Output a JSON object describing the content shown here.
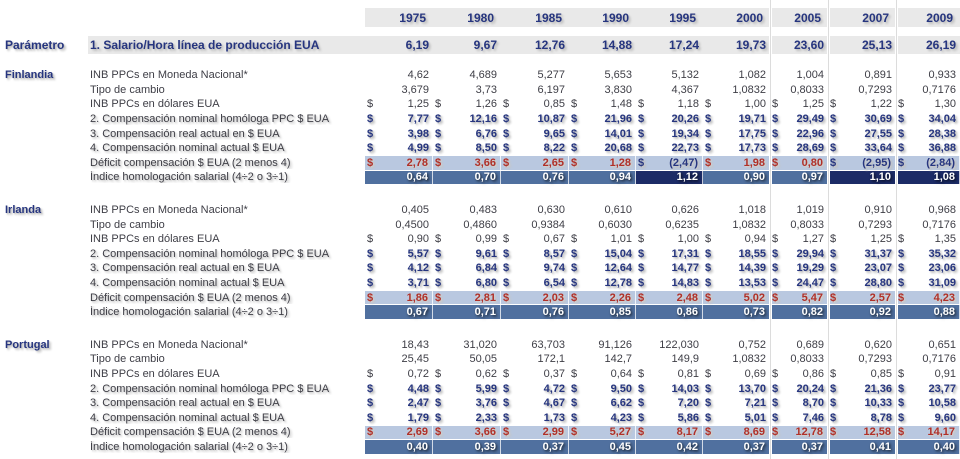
{
  "colors": {
    "navy_text": "#26357f",
    "red_text": "#b03028",
    "plain_text": "#3e3e46",
    "header_band_bg": "#e9e9e9",
    "deficit_row_bg": "#b9c8e0",
    "indice_row_bg_low": "#50709f",
    "indice_row_bg_high": "#1c2b66",
    "divider_line": "#dcdcdc"
  },
  "table": {
    "corner_label": "Parámetro",
    "years": [
      "1975",
      "1980",
      "1985",
      "1990",
      "1995",
      "2000",
      "2005",
      "2007",
      "2009"
    ],
    "parameter_row": {
      "label": "1. Salario/Hora línea de producción EUA",
      "values": [
        "6,19",
        "9,67",
        "12,76",
        "14,88",
        "17,24",
        "19,73",
        "23,60",
        "25,13",
        "26,19"
      ]
    },
    "rows": [
      {
        "key": "inb_ppc",
        "label": "INB PPCs en Moneda Nacional*",
        "dollar": false,
        "style": "plain"
      },
      {
        "key": "tipo_cambio",
        "label": "Tipo de cambio",
        "dollar": false,
        "style": "plain"
      },
      {
        "key": "inb_usd",
        "label": "INB PPCs en dólares EUA",
        "dollar": true,
        "style": "plain"
      },
      {
        "key": "comp2",
        "label": "2. Compensación nominal homóloga PPC $ EUA",
        "dollar": true,
        "style": "bold"
      },
      {
        "key": "comp3",
        "label": "3. Compensación real actual  en $ EUA",
        "dollar": true,
        "style": "bold"
      },
      {
        "key": "comp4",
        "label": "4. Compensación nominal actual $ EUA",
        "dollar": true,
        "style": "bold"
      },
      {
        "key": "deficit",
        "label": "Déficit compensación $ EUA (2 menos 4)",
        "dollar": true,
        "style": "deficit"
      },
      {
        "key": "indice",
        "label": "Índice homologación salarial (4÷2 o 3÷1)",
        "dollar": false,
        "style": "indice"
      }
    ],
    "countries": [
      {
        "name": "Finlandia",
        "values": {
          "inb_ppc": [
            "4,62",
            "4,689",
            "5,277",
            "5,653",
            "5,132",
            "1,082",
            "1,004",
            "0,891",
            "0,933"
          ],
          "tipo_cambio": [
            "3,679",
            "3,73",
            "6,197",
            "3,830",
            "4,367",
            "1,0832",
            "0,8033",
            "0,7293",
            "0,7176"
          ],
          "inb_usd": [
            "1,25",
            "1,26",
            "0,85",
            "1,48",
            "1,18",
            "1,00",
            "1,25",
            "1,22",
            "1,30"
          ],
          "comp2": [
            "7,77",
            "12,16",
            "10,87",
            "21,96",
            "20,26",
            "19,71",
            "29,49",
            "30,69",
            "34,04"
          ],
          "comp3": [
            "3,98",
            "6,76",
            "9,65",
            "14,01",
            "19,34",
            "17,75",
            "22,96",
            "27,55",
            "28,38"
          ],
          "comp4": [
            "4,99",
            "8,50",
            "8,22",
            "20,68",
            "22,73",
            "17,73",
            "28,69",
            "33,64",
            "36,88"
          ],
          "deficit": [
            "2,78",
            "3,66",
            "2,65",
            "1,28",
            "(2,47)",
            "1,98",
            "0,80",
            "(2,95)",
            "(2,84)"
          ],
          "indice": [
            "0,64",
            "0,70",
            "0,76",
            "0,94",
            "1,12",
            "0,90",
            "0,97",
            "1,10",
            "1,08"
          ]
        }
      },
      {
        "name": "Irlanda",
        "values": {
          "inb_ppc": [
            "0,405",
            "0,483",
            "0,630",
            "0,610",
            "0,626",
            "1,018",
            "1,019",
            "0,910",
            "0,968"
          ],
          "tipo_cambio": [
            "0,4500",
            "0,4860",
            "0,9384",
            "0,6030",
            "0,6235",
            "1,0832",
            "0,8033",
            "0,7293",
            "0,7176"
          ],
          "inb_usd": [
            "0,90",
            "0,99",
            "0,67",
            "1,01",
            "1,00",
            "0,94",
            "1,27",
            "1,25",
            "1,35"
          ],
          "comp2": [
            "5,57",
            "9,61",
            "8,57",
            "15,04",
            "17,31",
            "18,55",
            "29,94",
            "31,37",
            "35,32"
          ],
          "comp3": [
            "4,12",
            "6,84",
            "9,74",
            "12,64",
            "14,77",
            "14,39",
            "19,29",
            "23,07",
            "23,06"
          ],
          "comp4": [
            "3,71",
            "6,80",
            "6,54",
            "12,78",
            "14,83",
            "13,53",
            "24,47",
            "28,80",
            "31,09"
          ],
          "deficit": [
            "1,86",
            "2,81",
            "2,03",
            "2,26",
            "2,48",
            "5,02",
            "5,47",
            "2,57",
            "4,23"
          ],
          "indice": [
            "0,67",
            "0,71",
            "0,76",
            "0,85",
            "0,86",
            "0,73",
            "0,82",
            "0,92",
            "0,88"
          ]
        }
      },
      {
        "name": "Portugal",
        "values": {
          "inb_ppc": [
            "18,43",
            "31,020",
            "63,703",
            "91,126",
            "122,030",
            "0,752",
            "0,689",
            "0,620",
            "0,651"
          ],
          "tipo_cambio": [
            "25,45",
            "50,05",
            "172,1",
            "142,7",
            "149,9",
            "1,0832",
            "0,8033",
            "0,7293",
            "0,7176"
          ],
          "inb_usd": [
            "0,72",
            "0,62",
            "0,37",
            "0,64",
            "0,81",
            "0,69",
            "0,86",
            "0,85",
            "0,91"
          ],
          "comp2": [
            "4,48",
            "5,99",
            "4,72",
            "9,50",
            "14,03",
            "13,70",
            "20,24",
            "21,36",
            "23,77"
          ],
          "comp3": [
            "2,47",
            "3,76",
            "4,67",
            "6,62",
            "7,20",
            "7,21",
            "8,70",
            "10,33",
            "10,58"
          ],
          "comp4": [
            "1,79",
            "2,33",
            "1,73",
            "4,23",
            "5,86",
            "5,01",
            "7,46",
            "8,78",
            "9,60"
          ],
          "deficit": [
            "2,69",
            "3,66",
            "2,99",
            "5,27",
            "8,17",
            "8,69",
            "12,78",
            "12,58",
            "14,17"
          ],
          "indice": [
            "0,40",
            "0,39",
            "0,37",
            "0,45",
            "0,42",
            "0,37",
            "0,37",
            "0,41",
            "0,40"
          ]
        }
      }
    ]
  }
}
